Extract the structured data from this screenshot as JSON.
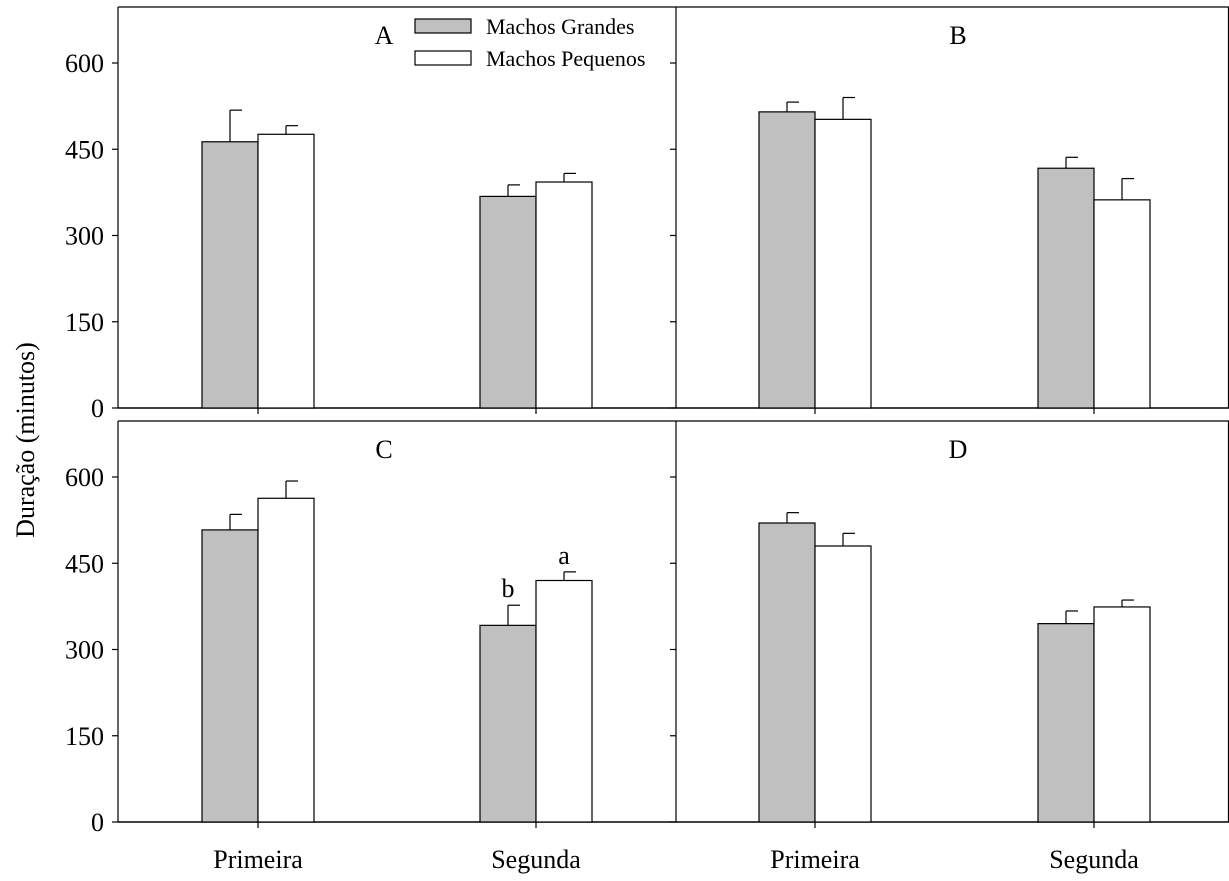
{
  "ylabel": "Duração (minutos)",
  "legend": [
    {
      "label": "Machos Grandes",
      "color": "#c0c0c0"
    },
    {
      "label": "Machos Pequenos",
      "color": "#ffffff"
    }
  ],
  "x_tick_labels": [
    "Primeira",
    "Segunda",
    "Primeira",
    "Segunda"
  ],
  "chart_data": [
    {
      "type": "bar",
      "panel_label": "A",
      "categories": [
        "Primeira",
        "Segunda"
      ],
      "series": [
        {
          "name": "Machos Grandes",
          "values": [
            463,
            368
          ],
          "errors": [
            55,
            20
          ]
        },
        {
          "name": "Machos Pequenos",
          "values": [
            476,
            393
          ],
          "errors": [
            15,
            15
          ]
        }
      ],
      "annotations": [],
      "ylim": [
        0,
        700
      ],
      "yticks": [
        0,
        150,
        300,
        450,
        600
      ],
      "legend_position": "top-right"
    },
    {
      "type": "bar",
      "panel_label": "B",
      "categories": [
        "Primeira",
        "Segunda"
      ],
      "series": [
        {
          "name": "Machos Grandes",
          "values": [
            515,
            417
          ],
          "errors": [
            17,
            19
          ]
        },
        {
          "name": "Machos Pequenos",
          "values": [
            502,
            362
          ],
          "errors": [
            38,
            37
          ]
        }
      ],
      "annotations": [],
      "ylim": [
        0,
        700
      ],
      "yticks": [
        0,
        150,
        300,
        450,
        600
      ]
    },
    {
      "type": "bar",
      "panel_label": "C",
      "categories": [
        "Primeira",
        "Segunda"
      ],
      "series": [
        {
          "name": "Machos Grandes",
          "values": [
            508,
            342
          ],
          "errors": [
            27,
            35
          ]
        },
        {
          "name": "Machos Pequenos",
          "values": [
            563,
            420
          ],
          "errors": [
            30,
            15
          ]
        }
      ],
      "annotations": [
        {
          "text": "b",
          "category": 1,
          "series": 0
        },
        {
          "text": "a",
          "category": 1,
          "series": 1
        }
      ],
      "ylim": [
        0,
        700
      ],
      "yticks": [
        0,
        150,
        300,
        450,
        600
      ]
    },
    {
      "type": "bar",
      "panel_label": "D",
      "categories": [
        "Primeira",
        "Segunda"
      ],
      "series": [
        {
          "name": "Machos Grandes",
          "values": [
            520,
            345
          ],
          "errors": [
            18,
            22
          ]
        },
        {
          "name": "Machos Pequenos",
          "values": [
            480,
            374
          ],
          "errors": [
            22,
            12
          ]
        }
      ],
      "annotations": [],
      "ylim": [
        0,
        700
      ],
      "yticks": [
        0,
        150,
        300,
        450,
        600
      ]
    }
  ]
}
